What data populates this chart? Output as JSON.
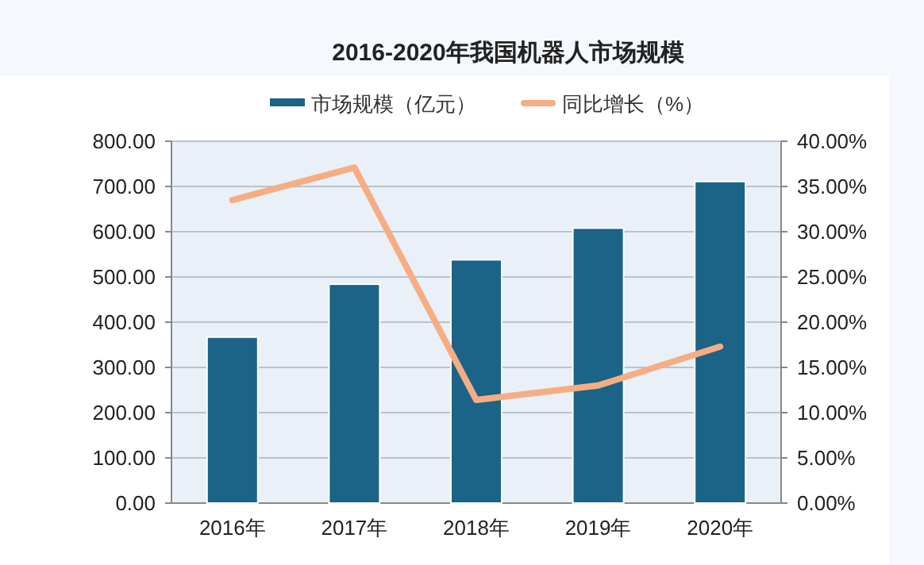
{
  "chart_data": {
    "type": "bar",
    "title": "2016-2020年我国机器人市场规模",
    "categories": [
      "2016年",
      "2017年",
      "2018年",
      "2019年",
      "2020年"
    ],
    "series": [
      {
        "name": "市场规模（亿元）",
        "color": "#1b6387",
        "values": [
          367,
          484,
          538,
          608,
          711
        ]
      },
      {
        "name": "同比增长（%）",
        "type": "line",
        "axis": "y2",
        "color": "#f6ad84",
        "values": [
          33.5,
          37.1,
          11.4,
          13.0,
          17.3
        ]
      }
    ],
    "ylim": [
      0,
      800
    ],
    "yticks": [
      {
        "value": 0,
        "label": "0.00"
      },
      {
        "value": 100,
        "label": "100.00"
      },
      {
        "value": 200,
        "label": "200.00"
      },
      {
        "value": 300,
        "label": "300.00"
      },
      {
        "value": 400,
        "label": "400.00"
      },
      {
        "value": 500,
        "label": "500.00"
      },
      {
        "value": 600,
        "label": "600.00"
      },
      {
        "value": 700,
        "label": "700.00"
      },
      {
        "value": 800,
        "label": "800.00"
      }
    ],
    "y2lim": [
      0,
      40
    ],
    "y2ticks": [
      {
        "value": 0,
        "label": "0.00%"
      },
      {
        "value": 5,
        "label": "5.00%"
      },
      {
        "value": 10,
        "label": "10.00%"
      },
      {
        "value": 15,
        "label": "15.00%"
      },
      {
        "value": 20,
        "label": "20.00%"
      },
      {
        "value": 25,
        "label": "25.00%"
      },
      {
        "value": 30,
        "label": "30.00%"
      },
      {
        "value": 35,
        "label": "35.00%"
      },
      {
        "value": 40,
        "label": "40.00%"
      }
    ],
    "grid": "y",
    "legend": "top",
    "marker": "none"
  }
}
